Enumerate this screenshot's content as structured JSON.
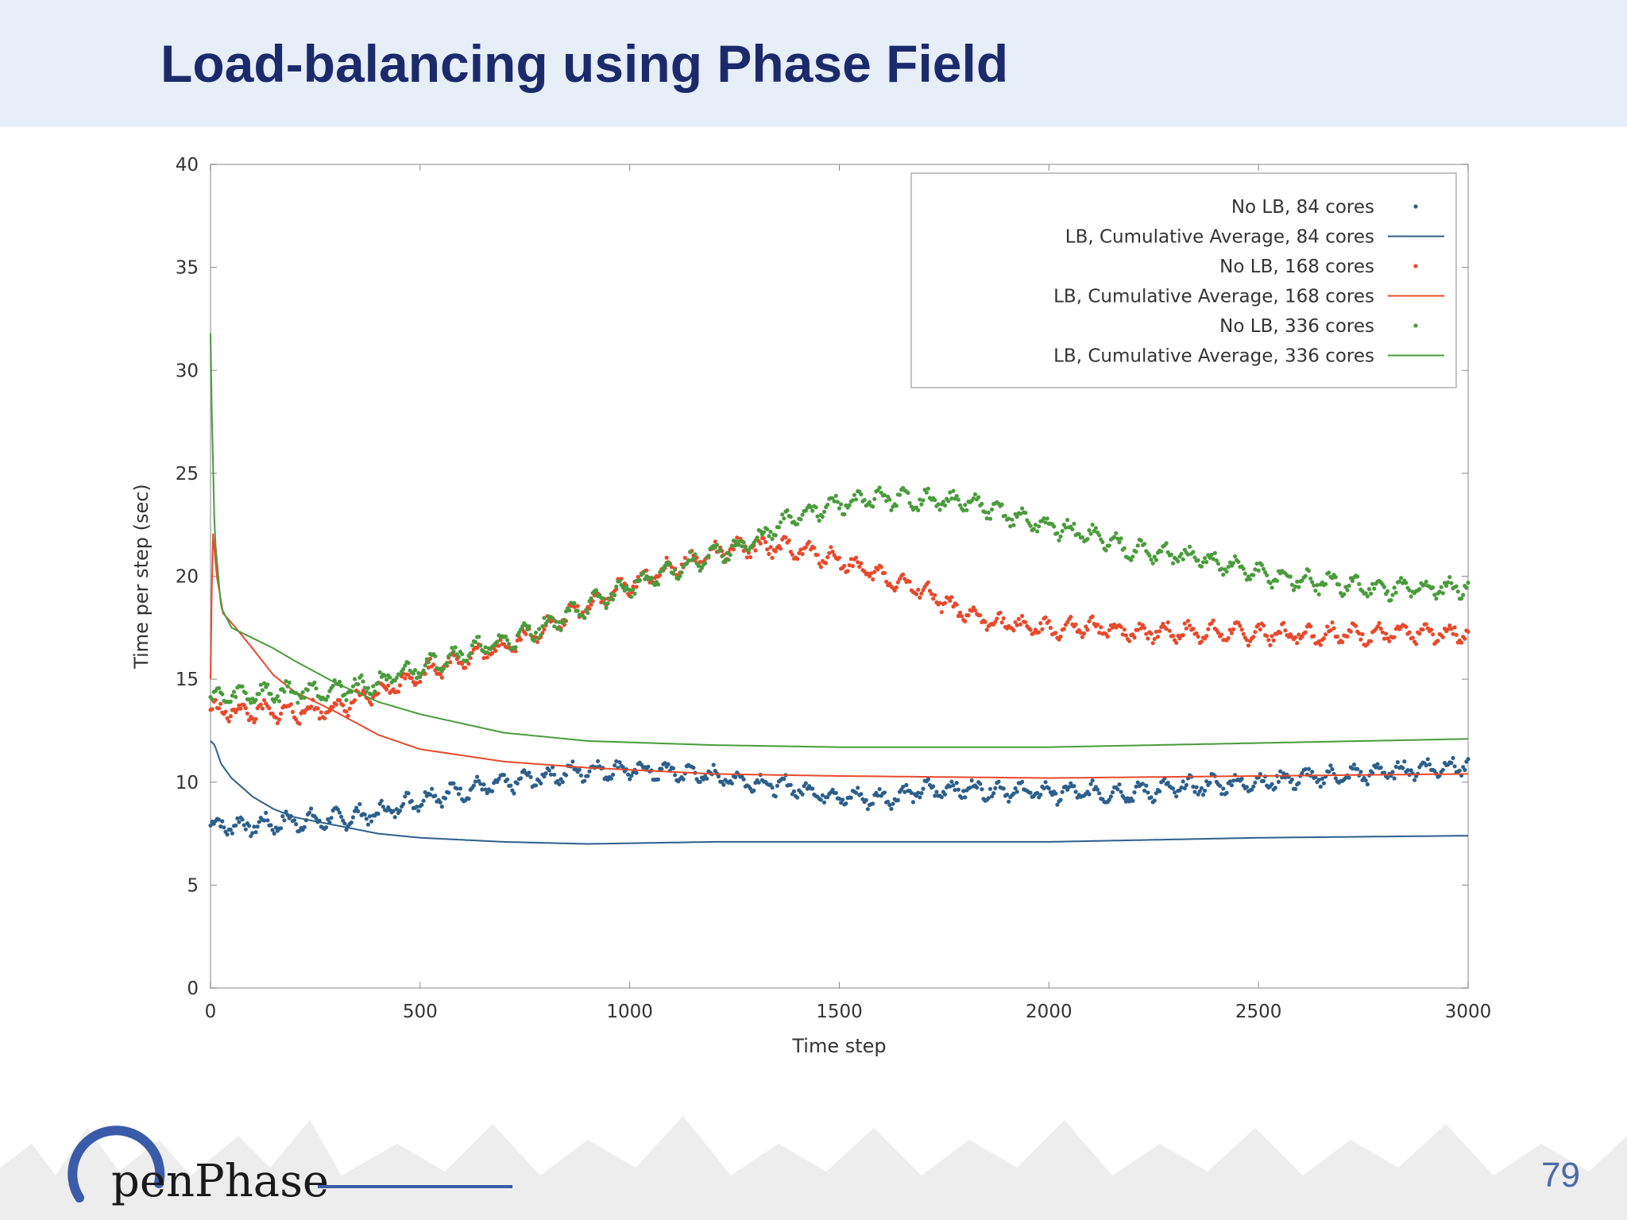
{
  "slide": {
    "title": "Load-balancing using Phase Field",
    "page_number": "79",
    "logo_text": "penPhase"
  },
  "colors": {
    "lb84": "#2d5f8a",
    "lb168": "#e8492b",
    "lb336": "#4a9b3c",
    "title": "#1b2a6b"
  },
  "chart_data": {
    "type": "scatter",
    "xlabel": "Time step",
    "ylabel": "Time per step (sec)",
    "xlim": [
      0,
      3000
    ],
    "ylim": [
      0,
      40
    ],
    "x_ticks": [
      "0",
      "500",
      "1000",
      "1500",
      "2000",
      "2500",
      "3000"
    ],
    "y_ticks": [
      "0",
      "5",
      "10",
      "15",
      "20",
      "25",
      "30",
      "35",
      "40"
    ],
    "grid": false,
    "legend_position": "top-right",
    "series": [
      {
        "name": "No LB, 84 cores",
        "kind": "points",
        "color": "#2d5f8a",
        "x": [
          0,
          100,
          200,
          300,
          400,
          500,
          600,
          700,
          800,
          900,
          1000,
          1100,
          1200,
          1300,
          1400,
          1500,
          1600,
          1700,
          1800,
          1900,
          2000,
          2100,
          2200,
          2300,
          2400,
          2500,
          2600,
          2700,
          2800,
          2900,
          3000
        ],
        "y": [
          7.9,
          7.9,
          8.1,
          8.2,
          8.5,
          9.2,
          9.6,
          9.9,
          10.3,
          10.6,
          10.6,
          10.5,
          10.3,
          10.0,
          9.7,
          9.3,
          9.2,
          9.6,
          9.7,
          9.6,
          9.5,
          9.5,
          9.5,
          9.7,
          9.9,
          10.0,
          10.2,
          10.3,
          10.5,
          10.7,
          10.8
        ]
      },
      {
        "name": "LB, Cumulative Average, 84 cores",
        "kind": "line",
        "color": "#2d5f8a",
        "x": [
          0,
          10,
          25,
          50,
          100,
          150,
          200,
          300,
          400,
          500,
          700,
          900,
          1200,
          1500,
          2000,
          2500,
          3000
        ],
        "y": [
          12.0,
          11.8,
          10.9,
          10.2,
          9.3,
          8.7,
          8.3,
          7.9,
          7.5,
          7.3,
          7.1,
          7.0,
          7.1,
          7.1,
          7.1,
          7.3,
          7.4
        ]
      },
      {
        "name": "No LB, 168 cores",
        "kind": "points",
        "color": "#e8492b",
        "x": [
          0,
          100,
          200,
          300,
          400,
          500,
          600,
          700,
          800,
          900,
          1000,
          1100,
          1200,
          1300,
          1400,
          1500,
          1600,
          1700,
          1800,
          1900,
          2000,
          2100,
          2200,
          2300,
          2400,
          2500,
          2600,
          2700,
          2800,
          2900,
          3000
        ],
        "y": [
          13.5,
          13.4,
          13.4,
          13.6,
          14.3,
          15.3,
          16.0,
          16.6,
          17.5,
          18.6,
          19.6,
          20.4,
          21.1,
          21.5,
          21.3,
          20.8,
          20.0,
          19.3,
          18.1,
          17.7,
          17.4,
          17.5,
          17.3,
          17.3,
          17.3,
          17.2,
          17.2,
          17.2,
          17.2,
          17.2,
          17.3
        ]
      },
      {
        "name": "LB, Cumulative Average, 168 cores",
        "kind": "line",
        "color": "#e8492b",
        "x": [
          0,
          5,
          15,
          30,
          60,
          100,
          150,
          200,
          300,
          400,
          500,
          700,
          900,
          1200,
          1500,
          2000,
          2500,
          3000
        ],
        "y": [
          15.0,
          22.3,
          20.0,
          18.2,
          17.5,
          16.5,
          15.2,
          14.4,
          13.4,
          12.3,
          11.6,
          11.0,
          10.7,
          10.4,
          10.3,
          10.2,
          10.3,
          10.4
        ]
      },
      {
        "name": "No LB, 336 cores",
        "kind": "points",
        "color": "#4a9b3c",
        "x": [
          0,
          100,
          200,
          300,
          400,
          500,
          600,
          700,
          800,
          900,
          1000,
          1100,
          1200,
          1300,
          1400,
          1500,
          1600,
          1700,
          1800,
          1900,
          2000,
          2100,
          2200,
          2300,
          2400,
          2500,
          2600,
          2700,
          2800,
          2900,
          3000
        ],
        "y": [
          14.1,
          14.3,
          14.4,
          14.5,
          14.8,
          15.6,
          16.3,
          16.8,
          17.6,
          18.6,
          19.5,
          20.3,
          21.0,
          21.7,
          23.0,
          23.5,
          23.8,
          23.7,
          23.6,
          23.0,
          22.4,
          22.0,
          21.3,
          21.0,
          20.7,
          20.1,
          19.8,
          19.6,
          19.4,
          19.4,
          19.5
        ]
      },
      {
        "name": "LB, Cumulative Average, 336 cores",
        "kind": "line",
        "color": "#4a9b3c",
        "x": [
          0,
          3,
          10,
          25,
          50,
          100,
          150,
          200,
          300,
          400,
          500,
          700,
          900,
          1200,
          1500,
          2000,
          2500,
          3000
        ],
        "y": [
          31.8,
          28.0,
          22.0,
          18.5,
          17.5,
          17.0,
          16.5,
          15.9,
          14.8,
          13.9,
          13.3,
          12.4,
          12.0,
          11.8,
          11.7,
          11.7,
          11.9,
          12.1
        ]
      }
    ]
  }
}
